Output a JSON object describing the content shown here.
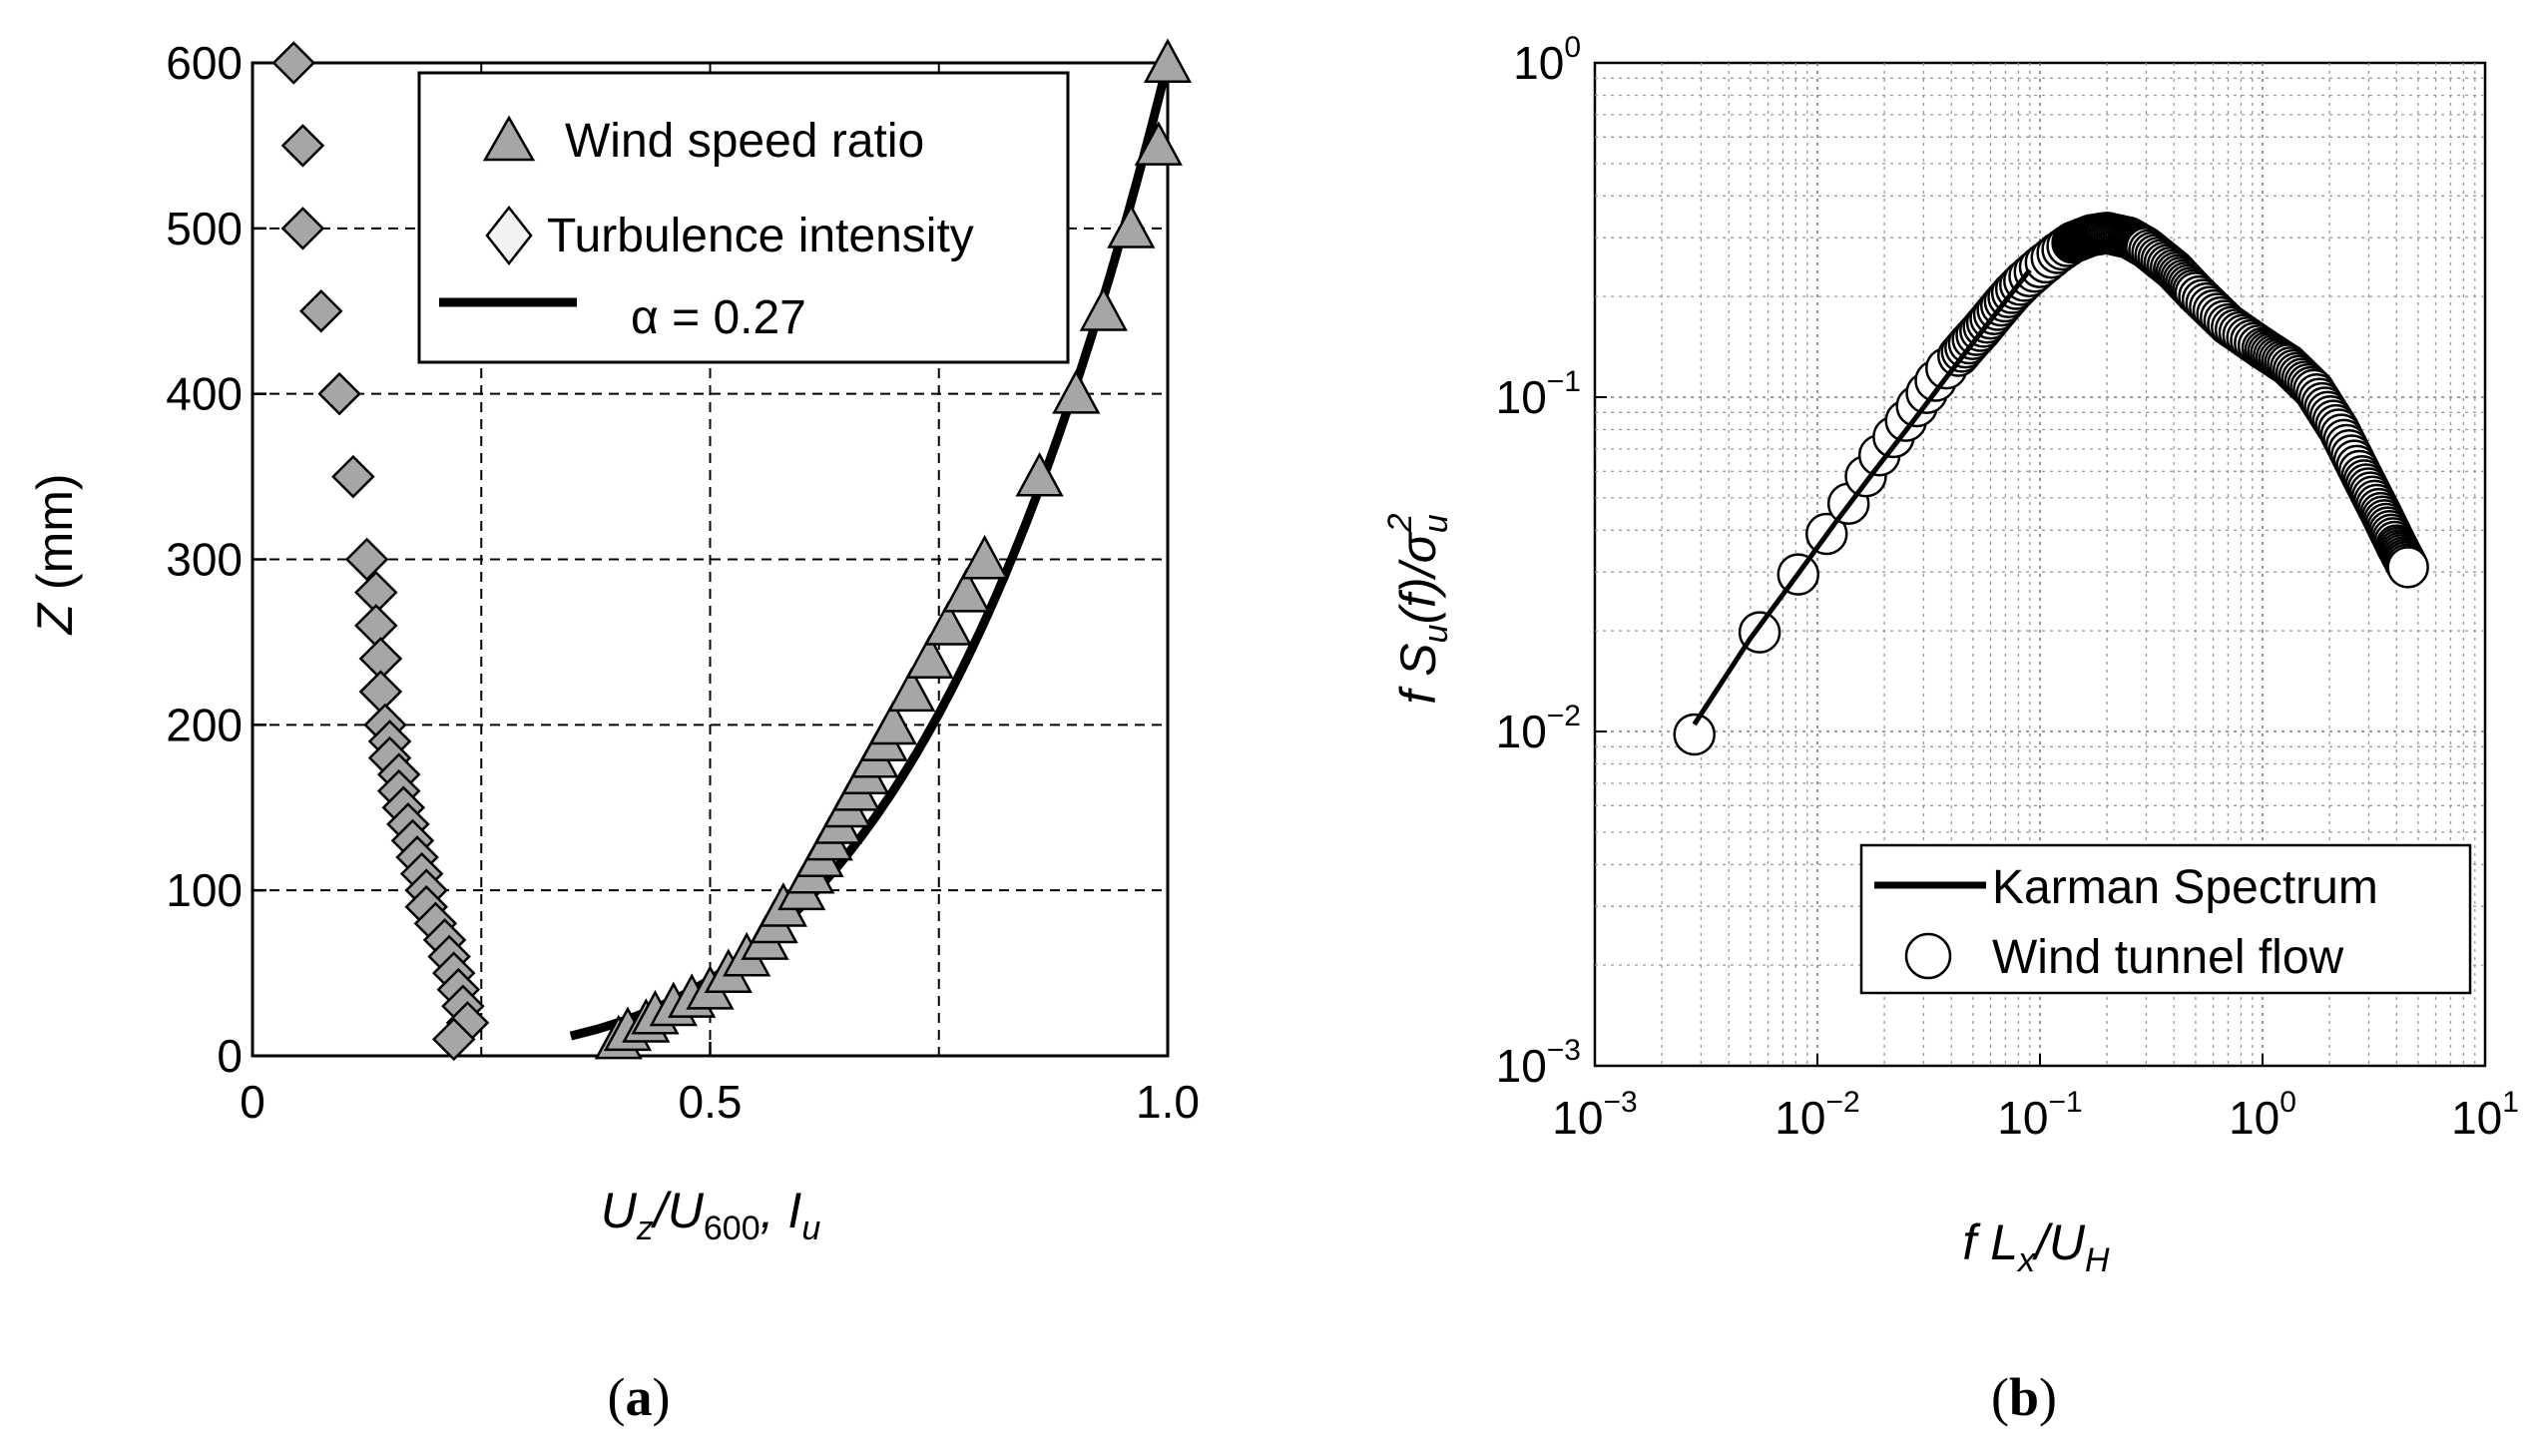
{
  "panels": {
    "a": {
      "label_open": "(",
      "label_letter": "a",
      "label_close": ")"
    },
    "b": {
      "label_open": "(",
      "label_letter": "b",
      "label_close": ")"
    }
  },
  "chart_data": [
    {
      "type": "scatter",
      "panel": "a",
      "title": "",
      "ylabel": {
        "symbol": "Z",
        "rest": " (mm)"
      },
      "xlabel": {
        "u1": "U",
        "s1": "z",
        "slash": "/U",
        "s2": "600",
        "comma": ", ",
        "u3": "I",
        "s3": "u"
      },
      "xlim": [
        0,
        1.0
      ],
      "ylim": [
        0,
        600
      ],
      "xticks": [
        0,
        0.5,
        1.0
      ],
      "xtick_labels": [
        "0",
        "0.5",
        "1.0"
      ],
      "yticks": [
        0,
        100,
        200,
        300,
        400,
        500,
        600
      ],
      "ytick_labels": [
        "0",
        "100",
        "200",
        "300",
        "400",
        "500",
        "600"
      ],
      "grid": "dashed",
      "legend": {
        "placement": "top-right",
        "entries": [
          {
            "label": "Wind speed ratio",
            "marker": "triangle"
          },
          {
            "label": "Turbulence intensity",
            "marker": "diamond"
          },
          {
            "label": "α = 0.27",
            "marker": "line"
          }
        ]
      },
      "series": [
        {
          "name": "Wind speed ratio",
          "marker": "triangle",
          "fill": "#a6a6a6",
          "points": [
            [
              0.4,
              10
            ],
            [
              0.41,
              15
            ],
            [
              0.43,
              20
            ],
            [
              0.44,
              25
            ],
            [
              0.46,
              30
            ],
            [
              0.48,
              35
            ],
            [
              0.5,
              40
            ],
            [
              0.52,
              50
            ],
            [
              0.54,
              60
            ],
            [
              0.56,
              70
            ],
            [
              0.57,
              80
            ],
            [
              0.58,
              90
            ],
            [
              0.6,
              100
            ],
            [
              0.61,
              110
            ],
            [
              0.62,
              120
            ],
            [
              0.63,
              130
            ],
            [
              0.64,
              140
            ],
            [
              0.65,
              150
            ],
            [
              0.66,
              160
            ],
            [
              0.67,
              170
            ],
            [
              0.68,
              180
            ],
            [
              0.69,
              190
            ],
            [
              0.7,
              200
            ],
            [
              0.72,
              220
            ],
            [
              0.74,
              240
            ],
            [
              0.76,
              260
            ],
            [
              0.78,
              280
            ],
            [
              0.8,
              300
            ],
            [
              0.86,
              350
            ],
            [
              0.9,
              400
            ],
            [
              0.93,
              450
            ],
            [
              0.96,
              500
            ],
            [
              0.99,
              550
            ],
            [
              1.0,
              600
            ]
          ]
        },
        {
          "name": "Turbulence intensity",
          "marker": "diamond",
          "fill": "#a6a6a6",
          "points": [
            [
              0.045,
              600
            ],
            [
              0.055,
              550
            ],
            [
              0.055,
              500
            ],
            [
              0.075,
              450
            ],
            [
              0.095,
              400
            ],
            [
              0.11,
              350
            ],
            [
              0.125,
              300
            ],
            [
              0.135,
              280
            ],
            [
              0.135,
              260
            ],
            [
              0.14,
              240
            ],
            [
              0.14,
              220
            ],
            [
              0.145,
              200
            ],
            [
              0.15,
              190
            ],
            [
              0.15,
              180
            ],
            [
              0.16,
              170
            ],
            [
              0.16,
              160
            ],
            [
              0.165,
              150
            ],
            [
              0.17,
              140
            ],
            [
              0.175,
              130
            ],
            [
              0.18,
              120
            ],
            [
              0.185,
              110
            ],
            [
              0.19,
              100
            ],
            [
              0.19,
              90
            ],
            [
              0.2,
              80
            ],
            [
              0.21,
              70
            ],
            [
              0.215,
              60
            ],
            [
              0.22,
              50
            ],
            [
              0.225,
              40
            ],
            [
              0.23,
              30
            ],
            [
              0.235,
              20
            ],
            [
              0.22,
              10
            ]
          ]
        },
        {
          "name": "α = 0.27",
          "type": "line",
          "alpha": 0.27,
          "zref": 600
        }
      ]
    },
    {
      "type": "scatter",
      "panel": "b",
      "title": "",
      "ylabel": {
        "f": "f S",
        "s1": "u",
        "mid": "(f)/σ",
        "s2": "u",
        "p2": "2"
      },
      "xlabel": {
        "f": "f L",
        "s1": "x",
        "mid": "/U",
        "s2": "H"
      },
      "xscale": "log",
      "yscale": "log",
      "xlim": [
        0.001,
        10
      ],
      "ylim": [
        0.001,
        1
      ],
      "xtick_exponents": [
        "-3",
        "-2",
        "-1",
        "0",
        "1"
      ],
      "ytick_exponents": [
        "-3",
        "-2",
        "-1",
        "0"
      ],
      "tick_base": "10",
      "grid": "dotted",
      "legend": {
        "placement": "bottom-right",
        "entries": [
          {
            "label": "Karman Spectrum",
            "marker": "line"
          },
          {
            "label": "Wind tunnel flow",
            "marker": "circle"
          }
        ]
      },
      "series": [
        {
          "name": "Karman Spectrum",
          "type": "line",
          "x": [
            0.0028,
            0.005,
            0.008,
            0.012,
            0.018,
            0.027,
            0.04,
            0.06,
            0.09
          ],
          "y": [
            0.0105,
            0.019,
            0.029,
            0.042,
            0.06,
            0.085,
            0.12,
            0.17,
            0.24
          ]
        },
        {
          "name": "Wind tunnel flow",
          "marker": "circle",
          "points": [
            [
              0.0028,
              0.0098
            ],
            [
              0.0055,
              0.0198
            ],
            [
              0.0082,
              0.0295
            ],
            [
              0.011,
              0.039
            ],
            [
              0.0138,
              0.048
            ],
            [
              0.0165,
              0.058
            ],
            [
              0.019,
              0.067
            ],
            [
              0.022,
              0.076
            ],
            [
              0.025,
              0.085
            ],
            [
              0.028,
              0.094
            ],
            [
              0.031,
              0.103
            ],
            [
              0.034,
              0.112
            ],
            [
              0.038,
              0.122
            ],
            [
              0.043,
              0.133
            ],
            [
              0.048,
              0.145
            ],
            [
              0.054,
              0.158
            ],
            [
              0.06,
              0.172
            ],
            [
              0.067,
              0.188
            ],
            [
              0.075,
              0.205
            ],
            [
              0.085,
              0.223
            ],
            [
              0.1,
              0.245
            ],
            [
              0.12,
              0.27
            ],
            [
              0.14,
              0.29
            ],
            [
              0.17,
              0.305
            ],
            [
              0.2,
              0.31
            ],
            [
              0.25,
              0.3
            ],
            [
              0.3,
              0.28
            ],
            [
              0.4,
              0.24
            ],
            [
              0.5,
              0.205
            ],
            [
              0.7,
              0.165
            ],
            [
              1.0,
              0.14
            ],
            [
              1.3,
              0.125
            ],
            [
              1.7,
              0.105
            ],
            [
              2.2,
              0.08
            ],
            [
              2.8,
              0.058
            ],
            [
              3.4,
              0.045
            ],
            [
              4.0,
              0.036
            ],
            [
              4.5,
              0.031
            ]
          ]
        }
      ]
    }
  ]
}
